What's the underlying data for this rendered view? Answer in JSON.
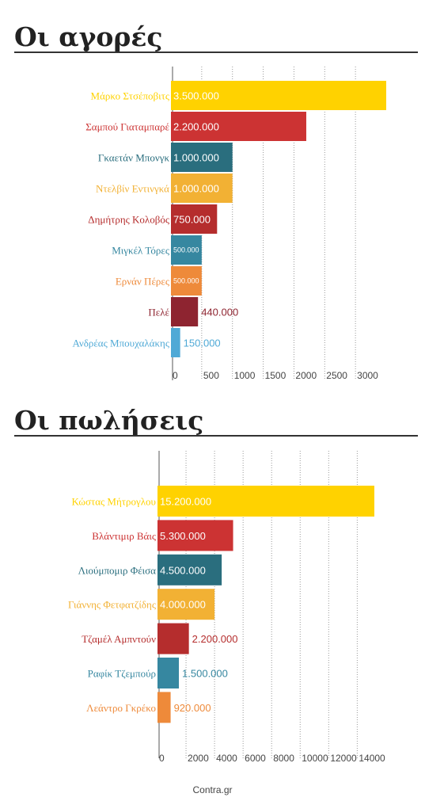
{
  "footer": "Contra.gr",
  "chart_data": [
    {
      "type": "bar",
      "orientation": "horizontal",
      "title": "Οι αγορές",
      "xlim": [
        0,
        3400
      ],
      "ticks": [
        "0",
        "500",
        "1000",
        "1500",
        "2000",
        "2500",
        "3000"
      ],
      "tick_values": [
        0,
        500,
        1000,
        1500,
        2000,
        2500,
        3000
      ],
      "grid": true,
      "categories": [
        "Μάρκο Στσέποβιτς",
        "Σαμπού Γιαταμπαρέ",
        "Γκαετάν Μπονγκ",
        "Ντελβίν Εντινγκά",
        "Δημήτρης Κολοβός",
        "Μιγκέλ Τόρες",
        "Ερνάν Πέρες",
        "Πελέ",
        "Ανδρέας Μπουχαλάκης"
      ],
      "values": [
        3500000,
        2200000,
        1000000,
        1000000,
        750000,
        500000,
        500000,
        440000,
        150000
      ],
      "value_labels": [
        "3.500.000",
        "2.200.000",
        "1.000.000",
        "1.000.000",
        "750.000",
        "500.000",
        "500.000",
        "440.000",
        "150.000"
      ],
      "colors": [
        "#FFD200",
        "#CC3333",
        "#2A6E7E",
        "#F2B134",
        "#B52D2D",
        "#3687A0",
        "#EE8A3A",
        "#8E2430",
        "#4FA9D6"
      ]
    },
    {
      "type": "bar",
      "orientation": "horizontal",
      "title": "Οι πωλήσεις",
      "xlim": [
        0,
        15500
      ],
      "ticks": [
        "0",
        "2000",
        "4000",
        "6000",
        "8000",
        "10000",
        "12000",
        "14000"
      ],
      "tick_values": [
        0,
        2000,
        4000,
        6000,
        8000,
        10000,
        12000,
        14000
      ],
      "grid": true,
      "categories": [
        "Κώστας Μήτρογλου",
        "Βλάντιμιρ Βάις",
        "Λιούμπομιρ Φέισα",
        "Γιάννης Φετφατζίδης",
        "Τζαμέλ Αμπντούν",
        "Ραφίκ Τζεμπούρ",
        "Λεάντρο Γκρέκο"
      ],
      "values": [
        15200000,
        5300000,
        4500000,
        4000000,
        2200000,
        1500000,
        920000
      ],
      "value_labels": [
        "15.200.000",
        "5.300.000",
        "4.500.000",
        "4.000.000",
        "2.200.000",
        "1.500.000",
        "920.000"
      ],
      "colors": [
        "#FFD200",
        "#CC3333",
        "#2A6E7E",
        "#F2B134",
        "#B52D2D",
        "#3687A0",
        "#EE8A3A"
      ]
    }
  ]
}
